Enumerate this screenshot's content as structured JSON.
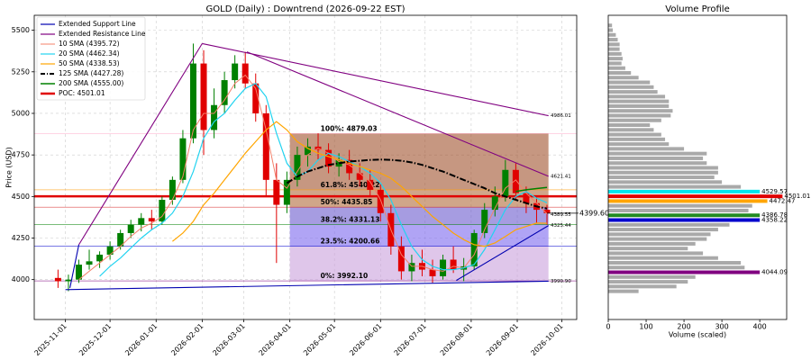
{
  "chart_data": [
    {
      "type": "candlestick",
      "title": "GOLD (Daily) : Downtrend (2026-09-22 EST)",
      "y_label": "Price (USD)",
      "xlim": [
        "2025-10-11",
        "2026-10-11"
      ],
      "xticks": [
        "2025-11-01",
        "2025-12-01",
        "2026-01-01",
        "2026-02-01",
        "2026-03-01",
        "2026-04-01",
        "2026-05-01",
        "2026-06-01",
        "2026-07-01",
        "2026-08-01",
        "2026-09-01",
        "2026-10-01"
      ],
      "ylim": [
        3760,
        5590
      ],
      "yticks": [
        4000,
        4250,
        4500,
        4750,
        5000,
        5250,
        5500
      ],
      "grid": true,
      "up_color": "#008000",
      "down_color": "#e00000",
      "x": [
        "2025-10-27",
        "2025-11-03",
        "2025-11-10",
        "2025-11-17",
        "2025-11-24",
        "2025-12-01",
        "2025-12-08",
        "2025-12-15",
        "2025-12-22",
        "2025-12-29",
        "2026-01-05",
        "2026-01-12",
        "2026-01-19",
        "2026-01-26",
        "2026-02-02",
        "2026-02-09",
        "2026-02-16",
        "2026-02-23",
        "2026-03-02",
        "2026-03-09",
        "2026-03-16",
        "2026-03-23",
        "2026-03-30",
        "2026-04-06",
        "2026-04-13",
        "2026-04-20",
        "2026-04-27",
        "2026-05-04",
        "2026-05-11",
        "2026-05-18",
        "2026-05-25",
        "2026-06-01",
        "2026-06-08",
        "2026-06-15",
        "2026-06-22",
        "2026-06-29",
        "2026-07-06",
        "2026-07-13",
        "2026-07-20",
        "2026-07-27",
        "2026-08-03",
        "2026-08-10",
        "2026-08-17",
        "2026-08-24",
        "2026-08-31",
        "2026-09-07",
        "2026-09-14",
        "2026-09-21"
      ],
      "open": [
        4010,
        3990,
        4000,
        4090,
        4110,
        4150,
        4200,
        4280,
        4330,
        4370,
        4350,
        4480,
        4600,
        4850,
        5300,
        4900,
        5050,
        5200,
        5300,
        5180,
        5000,
        4600,
        4450,
        4600,
        4750,
        4800,
        4780,
        4680,
        4720,
        4640,
        4600,
        4540,
        4400,
        4200,
        4050,
        4100,
        4060,
        4020,
        4120,
        4060,
        4080,
        4280,
        4420,
        4500,
        4660,
        4520,
        4460,
        4420
      ],
      "high": [
        4060,
        4030,
        4120,
        4180,
        4170,
        4230,
        4300,
        4360,
        4400,
        4420,
        4500,
        4620,
        4900,
        5420,
        5380,
        5150,
        5250,
        5350,
        5370,
        5240,
        5050,
        4700,
        4650,
        4800,
        4850,
        4880,
        4820,
        4760,
        4780,
        4700,
        4660,
        4580,
        4450,
        4260,
        4150,
        4180,
        4120,
        4150,
        4200,
        4130,
        4300,
        4460,
        4560,
        4720,
        4700,
        4560,
        4500,
        4450
      ],
      "low": [
        3950,
        3930,
        3980,
        4060,
        4070,
        4120,
        4180,
        4250,
        4290,
        4300,
        4330,
        4450,
        4580,
        4820,
        4750,
        4850,
        5000,
        5150,
        5150,
        4950,
        4500,
        4100,
        4400,
        4560,
        4680,
        4720,
        4640,
        4620,
        4600,
        4560,
        4500,
        4350,
        4150,
        4000,
        3990,
        4020,
        3980,
        4000,
        4040,
        3990,
        4060,
        4250,
        4380,
        4470,
        4480,
        4400,
        4340,
        4330
      ],
      "close": [
        3990,
        4000,
        4090,
        4110,
        4150,
        4200,
        4280,
        4330,
        4370,
        4350,
        4480,
        4600,
        4850,
        5300,
        4900,
        5050,
        5200,
        5300,
        5180,
        5000,
        4600,
        4450,
        4600,
        4750,
        4800,
        4780,
        4680,
        4720,
        4640,
        4600,
        4540,
        4400,
        4200,
        4050,
        4100,
        4060,
        4020,
        4120,
        4060,
        4080,
        4280,
        4420,
        4500,
        4660,
        4520,
        4460,
        4420,
        4399.6
      ],
      "trendlines": [
        {
          "name": "Extended Support Line",
          "color": "#0000b0",
          "x": [
            "2025-11-01",
            "2026-09-22"
          ],
          "y": [
            3940,
            3990.9
          ]
        },
        {
          "name": "Extended Resistance Line",
          "color": "#800080",
          "x": [
            "2026-02-01",
            "2026-09-22"
          ],
          "y": [
            5420,
            4986.01
          ]
        },
        {
          "color": "#800080",
          "x": [
            "2025-11-10",
            "2026-02-01"
          ],
          "y": [
            4210,
            5420
          ]
        },
        {
          "color": "#800080",
          "x": [
            "2026-03-03",
            "2026-09-22"
          ],
          "y": [
            5370,
            4621.41
          ]
        },
        {
          "color": "#0000b0",
          "x": [
            "2026-07-22",
            "2026-09-22"
          ],
          "y": [
            3995,
            4325.44
          ]
        },
        {
          "color": "#0000b0",
          "x": [
            "2025-11-04",
            "2025-11-10"
          ],
          "y": [
            3950,
            4210
          ]
        }
      ],
      "series": [
        {
          "name": "10 SMA (4395.72)",
          "color": "#f4806a",
          "width": 1,
          "values": [
            null,
            null,
            4000,
            4050,
            4100,
            4150,
            4200,
            4260,
            4310,
            4340,
            4380,
            4480,
            4620,
            4900,
            5000,
            5000,
            5080,
            5180,
            5230,
            5150,
            4900,
            4600,
            4550,
            4650,
            4750,
            4790,
            4760,
            4710,
            4690,
            4640,
            4590,
            4480,
            4300,
            4150,
            4080,
            4080,
            4060,
            4050,
            4080,
            4070,
            4150,
            4300,
            4430,
            4550,
            4600,
            4520,
            4460,
            4395.72
          ]
        },
        {
          "name": "20 SMA (4462.34)",
          "color": "#22d3f0",
          "width": 1.2,
          "values": [
            null,
            null,
            null,
            null,
            4020,
            4080,
            4130,
            4190,
            4250,
            4300,
            4340,
            4400,
            4500,
            4650,
            4850,
            4950,
            5000,
            5080,
            5150,
            5180,
            5100,
            4880,
            4700,
            4620,
            4650,
            4720,
            4760,
            4740,
            4710,
            4680,
            4640,
            4580,
            4480,
            4330,
            4200,
            4120,
            4080,
            4060,
            4060,
            4070,
            4090,
            4180,
            4300,
            4420,
            4500,
            4530,
            4490,
            4462.34
          ]
        },
        {
          "name": "50 SMA (4338.53)",
          "color": "#ffa500",
          "width": 1.2,
          "values": [
            null,
            null,
            null,
            null,
            null,
            null,
            null,
            null,
            null,
            null,
            null,
            4230,
            4280,
            4350,
            4450,
            4520,
            4600,
            4680,
            4760,
            4830,
            4900,
            4950,
            4900,
            4830,
            4790,
            4760,
            4740,
            4720,
            4700,
            4680,
            4660,
            4640,
            4610,
            4560,
            4500,
            4440,
            4380,
            4330,
            4280,
            4240,
            4210,
            4200,
            4220,
            4260,
            4300,
            4320,
            4340,
            4338.53
          ]
        },
        {
          "name": "125 SMA (4427.28)",
          "color": "#000000",
          "width": 2,
          "style": "dashdot",
          "values": [
            null,
            null,
            null,
            null,
            null,
            null,
            null,
            null,
            null,
            null,
            null,
            null,
            null,
            null,
            null,
            null,
            null,
            null,
            null,
            null,
            null,
            null,
            4580,
            4620,
            4650,
            4670,
            4690,
            4700,
            4710,
            4715,
            4720,
            4722,
            4720,
            4715,
            4705,
            4690,
            4670,
            4650,
            4625,
            4600,
            4575,
            4550,
            4520,
            4500,
            4480,
            4460,
            4440,
            4427.28
          ]
        },
        {
          "name": "200 SMA (4555.00)",
          "color": "#008000",
          "width": 1.5,
          "values": [
            null,
            null,
            null,
            null,
            null,
            null,
            null,
            null,
            null,
            null,
            null,
            null,
            null,
            null,
            null,
            null,
            null,
            null,
            null,
            null,
            null,
            null,
            null,
            null,
            null,
            null,
            null,
            null,
            null,
            null,
            null,
            null,
            null,
            null,
            null,
            null,
            null,
            null,
            null,
            null,
            null,
            null,
            null,
            null,
            4530,
            4540,
            4548,
            4555.0
          ]
        }
      ],
      "poc": {
        "name": "POC: 4501.01",
        "color": "#e00000",
        "value": 4501.01
      },
      "fib": {
        "x": [
          "2026-04-01",
          "2026-09-22"
        ],
        "levels": [
          {
            "label": "100%: 4879.03",
            "value": 4879.03,
            "color": "#ff9ec0",
            "fill": "#a0522d"
          },
          {
            "label": "61.8%: 4540.22",
            "value": 4540.22,
            "color": "#ff9900",
            "fill": "#b06a3a"
          },
          {
            "label": "50%: 4435.85",
            "value": 4435.85,
            "color": "#d00000",
            "fill": "#6a5acd"
          },
          {
            "label": "38.2%: 4331.13",
            "value": 4331.13,
            "color": "#008000",
            "fill": "#7b68ee"
          },
          {
            "label": "23.5%: 4200.66",
            "value": 4200.66,
            "color": "#0000cd",
            "fill": "#c9a0dc"
          },
          {
            "label": "0%: 3992.10",
            "value": 3992.1,
            "color": "#800080"
          }
        ]
      },
      "annotations": [
        {
          "text": "4986.01",
          "value": 4986.01,
          "color": "#800080"
        },
        {
          "text": "4621.41",
          "value": 4621.41,
          "color": "#800080"
        },
        {
          "text": "4389.55",
          "value": 4389.55,
          "color": "#555555"
        },
        {
          "text": "4325.44",
          "value": 4325.44,
          "color": "#0000b0"
        },
        {
          "text": "3990.90",
          "value": 3990.9,
          "color": "#0000b0"
        },
        {
          "text": "4399.60",
          "value": 4399.6,
          "color": "#000000",
          "style": "current"
        }
      ]
    },
    {
      "type": "barh",
      "title": "Volume Profile",
      "x_label": "Volume (scaled)",
      "xlim": [
        0,
        471
      ],
      "xticks": [
        0,
        100,
        200,
        300,
        400
      ],
      "ylim": [
        3760,
        5590
      ],
      "y": [
        3929.81,
        3958.37,
        3986.93,
        4015.49,
        4044.09,
        4072.61,
        4101.17,
        4129.73,
        4158.29,
        4186.85,
        4215.41,
        4243.97,
        4272.53,
        4301.09,
        4329.65,
        4358.22,
        4386.78,
        4415.33,
        4443.89,
        4472.47,
        4501.01,
        4529.57,
        4558.13,
        4586.69,
        4615.25,
        4643.81,
        4672.37,
        4700.93,
        4729.49,
        4758.05,
        4786.61,
        4815.17,
        4843.73,
        4872.29,
        4900.85,
        4929.41,
        4957.97,
        4986.53,
        5015.09,
        5043.65,
        5072.21,
        5100.77,
        5129.33,
        5157.89,
        5186.45,
        5215.01,
        5243.57,
        5272.13,
        5300.69,
        5329.25,
        5357.81,
        5386.37,
        5414.93,
        5443.49,
        5472.05,
        5500.61,
        5529.17
      ],
      "values": [
        80,
        180,
        210,
        230,
        400,
        360,
        350,
        290,
        250,
        210,
        230,
        260,
        270,
        290,
        320,
        400,
        400,
        370,
        380,
        420,
        460,
        400,
        350,
        300,
        280,
        290,
        290,
        260,
        250,
        260,
        200,
        160,
        150,
        140,
        120,
        110,
        140,
        165,
        170,
        160,
        160,
        150,
        130,
        120,
        110,
        80,
        60,
        45,
        35,
        38,
        35,
        30,
        30,
        25,
        20,
        12,
        10
      ],
      "color": "#a9a9a9",
      "highlights": [
        {
          "y": 4044.09,
          "color": "#800080"
        },
        {
          "y": 4358.22,
          "color": "#0000cd"
        },
        {
          "y": 4386.78,
          "color": "#228b22"
        },
        {
          "y": 4472.47,
          "color": "#ffa500"
        },
        {
          "y": 4501.01,
          "color": "#e00000"
        },
        {
          "y": 4529.57,
          "color": "#00e5ee"
        }
      ]
    }
  ]
}
